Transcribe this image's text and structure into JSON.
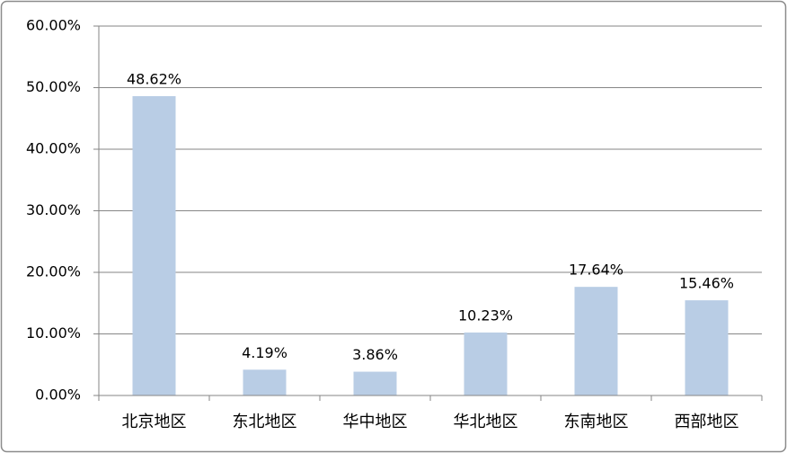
{
  "chart_data": {
    "type": "bar",
    "categories": [
      "北京地区",
      "东北地区",
      "华中地区",
      "华北地区",
      "东南地区",
      "西部地区"
    ],
    "values": [
      48.62,
      4.19,
      3.86,
      10.23,
      17.64,
      15.46
    ],
    "value_labels": [
      "48.62%",
      "4.19%",
      "3.86%",
      "10.23%",
      "17.64%",
      "15.46%"
    ],
    "color": "#b9cde5",
    "ylim": [
      0,
      60
    ],
    "yticks": [
      {
        "value": 0,
        "label": "0.00%"
      },
      {
        "value": 10,
        "label": "10.00%"
      },
      {
        "value": 20,
        "label": "20.00%"
      },
      {
        "value": 30,
        "label": "30.00%"
      },
      {
        "value": 40,
        "label": "40.00%"
      },
      {
        "value": 50,
        "label": "50.00%"
      },
      {
        "value": 60,
        "label": "60.00%"
      }
    ],
    "grid": true
  }
}
